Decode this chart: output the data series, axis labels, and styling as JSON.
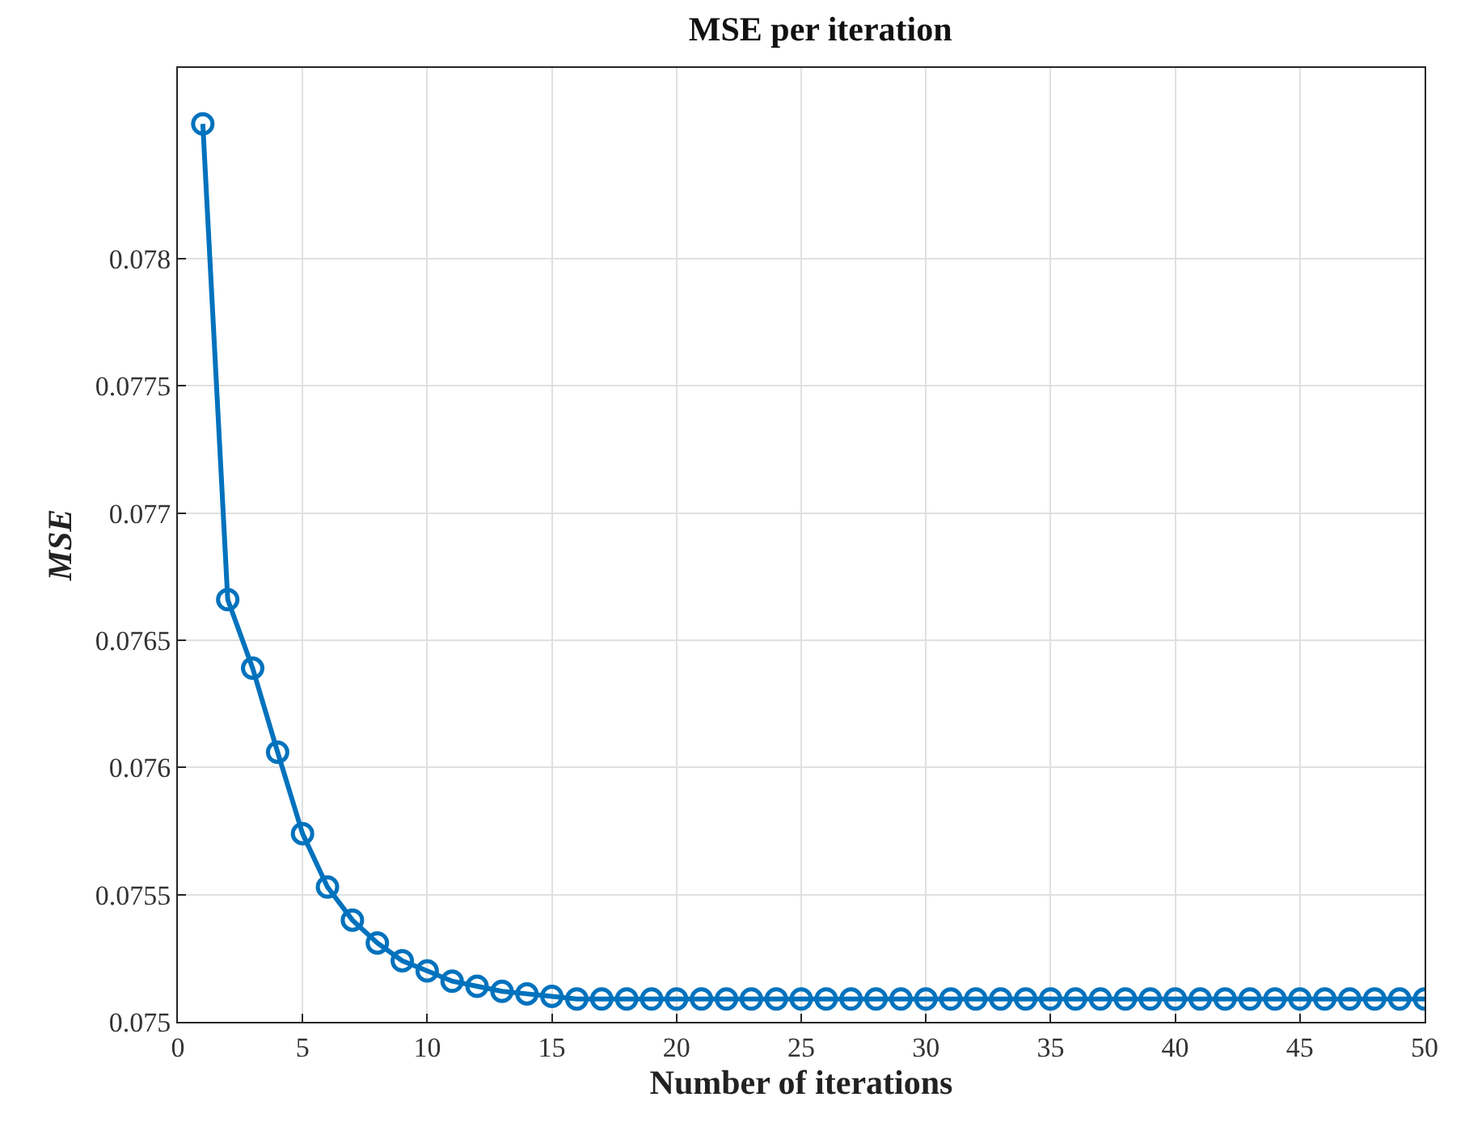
{
  "chart_data": {
    "type": "line",
    "title": "MSE per iteration",
    "xlabel": "Number of iterations",
    "ylabel": "MSE",
    "x": [
      1,
      2,
      3,
      4,
      5,
      6,
      7,
      8,
      9,
      10,
      11,
      12,
      13,
      14,
      15,
      16,
      17,
      18,
      19,
      20,
      21,
      22,
      23,
      24,
      25,
      26,
      27,
      28,
      29,
      30,
      31,
      32,
      33,
      34,
      35,
      36,
      37,
      38,
      39,
      40,
      41,
      42,
      43,
      44,
      45,
      46,
      47,
      48,
      49,
      50
    ],
    "series": [
      {
        "color": "#0072bd",
        "values": [
          0.07853,
          0.07666,
          0.07639,
          0.07606,
          0.07574,
          0.07553,
          0.0754,
          0.07531,
          0.07524,
          0.0752,
          0.07516,
          0.07514,
          0.07512,
          0.07511,
          0.0751,
          0.07509,
          0.07509,
          0.07509,
          0.07509,
          0.07509,
          0.07509,
          0.07509,
          0.07509,
          0.07509,
          0.07509,
          0.07509,
          0.07509,
          0.07509,
          0.07509,
          0.07509,
          0.07509,
          0.07509,
          0.07509,
          0.07509,
          0.07509,
          0.07509,
          0.07509,
          0.07509,
          0.07509,
          0.07509,
          0.07509,
          0.07509,
          0.07509,
          0.07509,
          0.07509,
          0.07509,
          0.07509,
          0.07509,
          0.07509,
          0.07509
        ]
      }
    ],
    "xlim": [
      0,
      50
    ],
    "ylim": [
      0.075,
      0.07875
    ],
    "xticks": [
      0,
      5,
      10,
      15,
      20,
      25,
      30,
      35,
      40,
      45,
      50
    ],
    "yticks": [
      0.075,
      0.0755,
      0.076,
      0.0765,
      0.077,
      0.0775,
      0.078
    ],
    "grid": true,
    "marker": "circle",
    "line_style": "solid"
  }
}
